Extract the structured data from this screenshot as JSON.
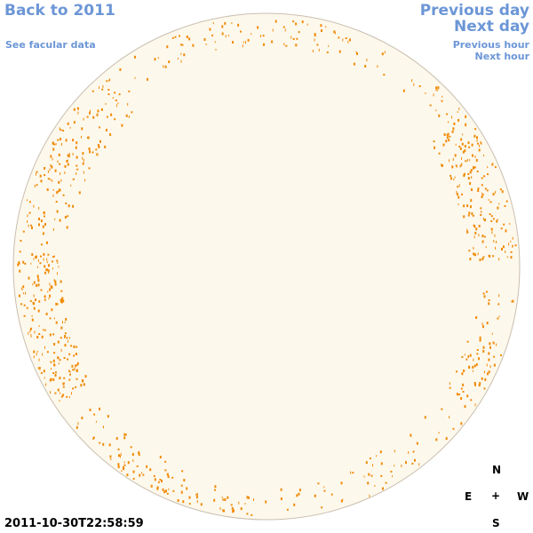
{
  "nav": {
    "back_label": "Back to 2011",
    "facular_label": "See facular data",
    "prev_day_label": "Previous day",
    "next_day_label": "Next day",
    "prev_hour_label": "Previous hour",
    "next_hour_label": "Next hour"
  },
  "timestamp": "2011-10-30T22:58:59",
  "compass": {
    "north": "N",
    "east": "E",
    "center": "+",
    "west": "W",
    "south": "S"
  },
  "colors": {
    "disk_fill": "#fdf8ec",
    "disk_edge": "#c9bfb0",
    "feature": "#f08c0a",
    "link": "#6c96d6"
  }
}
